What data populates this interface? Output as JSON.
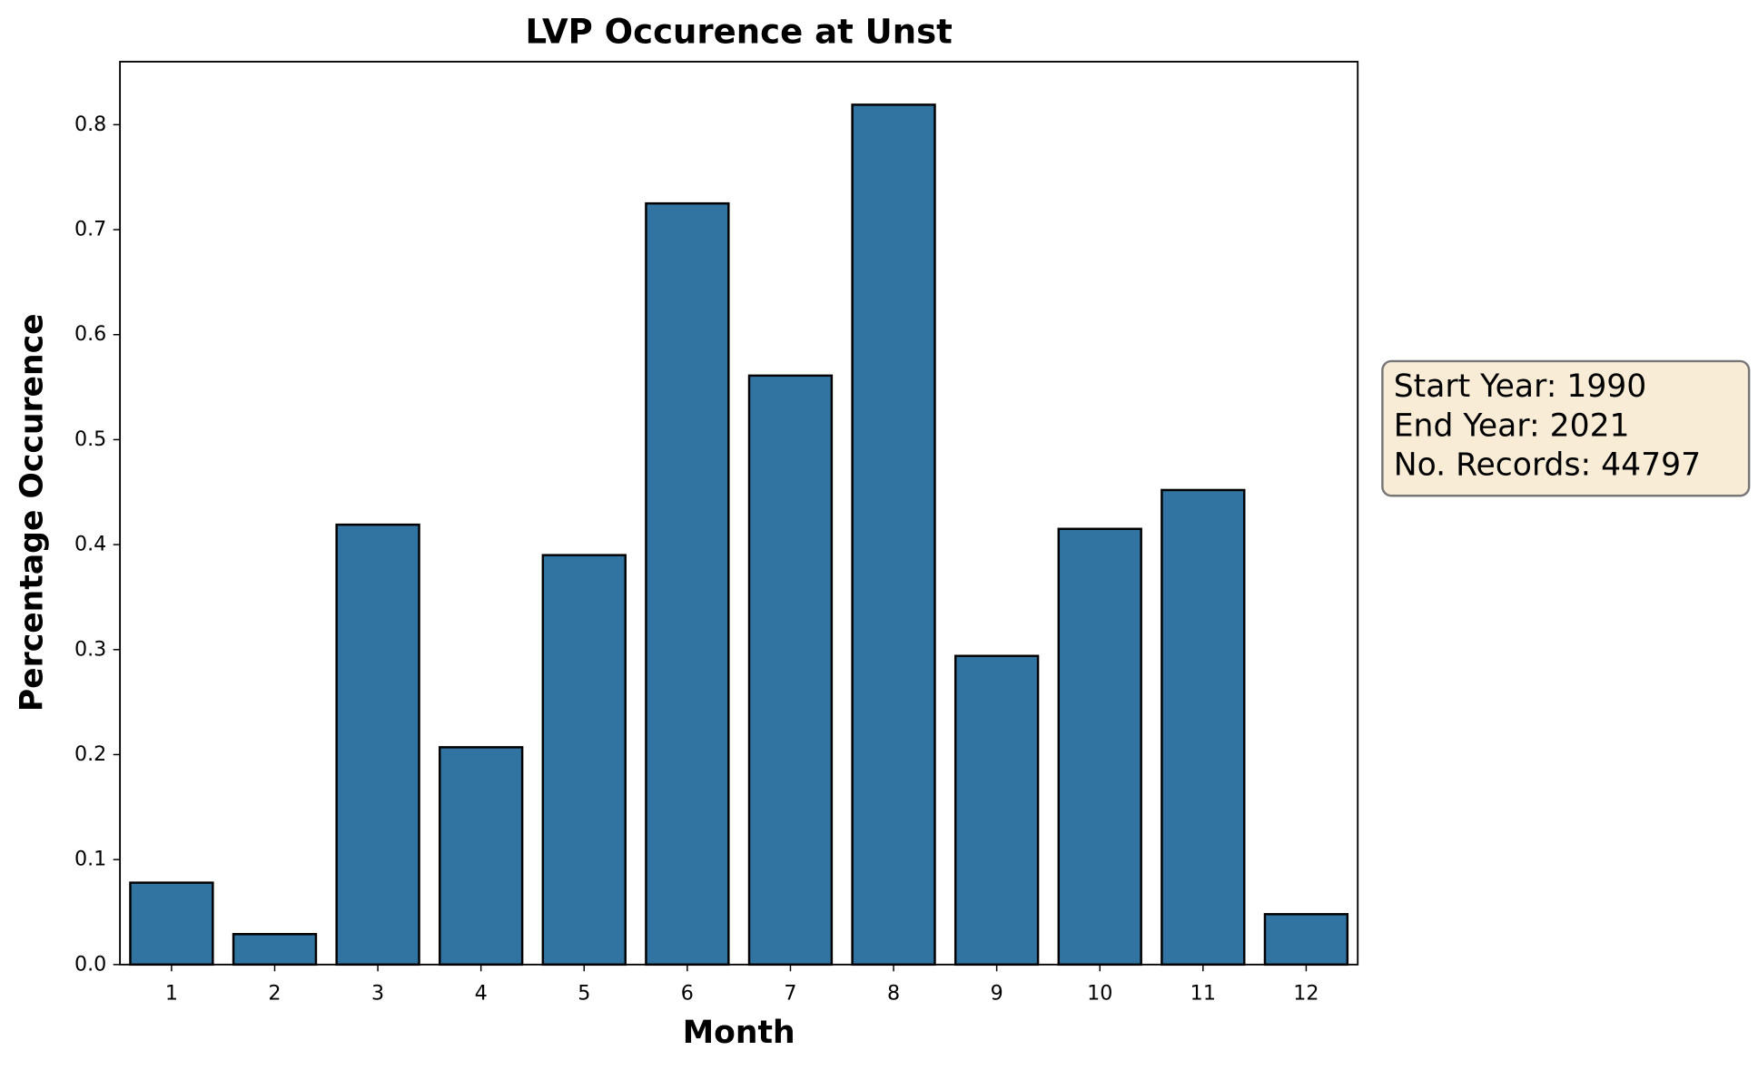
{
  "chart_data": {
    "type": "bar",
    "title": "LVP Occurence at Unst",
    "x_label": "Month",
    "y_label": "Percentage Occurence",
    "categories": [
      1,
      2,
      3,
      4,
      5,
      6,
      7,
      8,
      9,
      10,
      11,
      12
    ],
    "values": [
      0.078,
      0.029,
      0.419,
      0.207,
      0.39,
      0.725,
      0.561,
      0.819,
      0.294,
      0.415,
      0.452,
      0.048
    ],
    "color": "#3274a1",
    "ylim": [
      0,
      0.86
    ],
    "yticks": [
      {
        "value": 0,
        "label": "0.0"
      },
      0.1,
      0.2,
      0.3,
      0.4,
      0.5,
      0.6,
      0.7,
      0.8
    ],
    "annotation": [
      "Start Year: 1990",
      "End Year: 2021",
      "No. Records: 44797"
    ]
  }
}
